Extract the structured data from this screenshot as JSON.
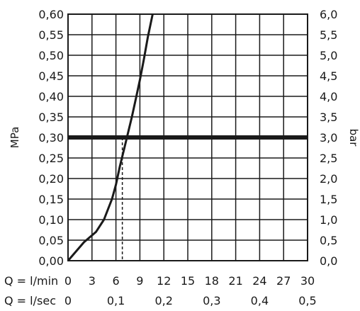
{
  "chart_data": {
    "type": "line",
    "y_left": {
      "label": "MPa",
      "range": [
        0,
        0.6
      ],
      "ticks": [
        "0,00",
        "0,05",
        "0,10",
        "0,15",
        "0,20",
        "0,25",
        "0,30",
        "0,35",
        "0,40",
        "0,45",
        "0,50",
        "0,55",
        "0,60"
      ]
    },
    "y_right": {
      "label": "bar",
      "range": [
        0,
        6
      ],
      "ticks": [
        "0,0",
        "0,5",
        "1,0",
        "1,5",
        "2,0",
        "2,5",
        "3,0",
        "3,5",
        "4,0",
        "4,5",
        "5,0",
        "5,5",
        "6,0"
      ]
    },
    "x_primary": {
      "row_label": "Q = l/min",
      "range": [
        0,
        30
      ],
      "ticks": [
        "0",
        "3",
        "6",
        "9",
        "12",
        "15",
        "18",
        "21",
        "24",
        "27",
        "30"
      ]
    },
    "x_secondary": {
      "row_label": "Q = l/sec",
      "tick_values": [
        0,
        6,
        12,
        18,
        24,
        30
      ],
      "ticks": [
        "0",
        "0,1",
        "0,2",
        "0,3",
        "0,4",
        "0,5"
      ]
    },
    "grid": true,
    "series": [
      {
        "x": [
          0,
          2,
          3.5,
          4.5,
          5.5,
          6.0,
          6.5,
          7.0,
          7.5,
          8.0,
          8.5,
          9.0,
          9.5,
          10.0,
          10.6
        ],
        "y": [
          0,
          0.045,
          0.07,
          0.1,
          0.15,
          0.185,
          0.23,
          0.27,
          0.31,
          0.35,
          0.395,
          0.44,
          0.49,
          0.545,
          0.6
        ]
      }
    ],
    "reference_line": {
      "y": 0.3
    },
    "marker_line": {
      "x": 6.8,
      "y": 0.3
    },
    "colors": {
      "curve": "#1a1a1a",
      "grid": "#1a1a1a",
      "reference": "#1a1a1a"
    }
  }
}
